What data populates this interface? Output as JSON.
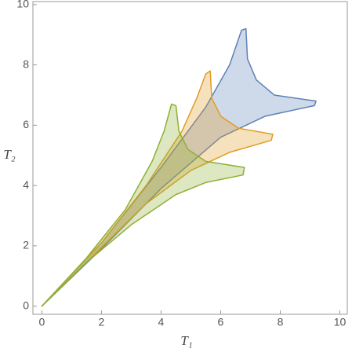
{
  "chart_data": {
    "type": "region",
    "xlabel": "T₁",
    "ylabel": "T₂",
    "xlim": [
      -0.3,
      10.25
    ],
    "ylim": [
      -0.27,
      10.1
    ],
    "xticks": [
      0,
      2,
      4,
      6,
      8,
      10
    ],
    "yticks": [
      0,
      2,
      4,
      6,
      8,
      10
    ],
    "grid": false,
    "fill_opacity": 0.3,
    "series": [
      {
        "color": "#5e81b5",
        "x": [
          0,
          2,
          4,
          5.5,
          6.3,
          6.7,
          6.85,
          6.9,
          7.2,
          7.8,
          9.2,
          9.15,
          7.5,
          6,
          4,
          2,
          0
        ],
        "y": [
          0,
          2.1,
          4.6,
          6.6,
          8,
          9.15,
          9.2,
          8.2,
          7.5,
          7.0,
          6.8,
          6.65,
          6.3,
          5.6,
          3.9,
          1.9,
          0
        ]
      },
      {
        "color": "#e19c24",
        "x": [
          0,
          2,
          3.5,
          4.7,
          5.2,
          5.5,
          5.65,
          5.7,
          6.0,
          6.6,
          7.75,
          7.7,
          6.3,
          5,
          3.5,
          2,
          0
        ],
        "y": [
          0,
          2.1,
          4,
          5.8,
          6.9,
          7.7,
          7.8,
          6.9,
          6.3,
          5.9,
          5.7,
          5.5,
          5.1,
          4.5,
          3.4,
          1.95,
          0
        ]
      },
      {
        "color": "#8fb032",
        "x": [
          0,
          1.5,
          2.8,
          3.7,
          4.1,
          4.35,
          4.5,
          4.6,
          4.9,
          5.5,
          6.8,
          6.75,
          5.5,
          4.5,
          3,
          1.5,
          0
        ],
        "y": [
          0,
          1.6,
          3.2,
          4.8,
          5.8,
          6.7,
          6.65,
          5.8,
          5.2,
          4.8,
          4.6,
          4.35,
          4.1,
          3.7,
          2.7,
          1.45,
          0
        ]
      }
    ]
  }
}
